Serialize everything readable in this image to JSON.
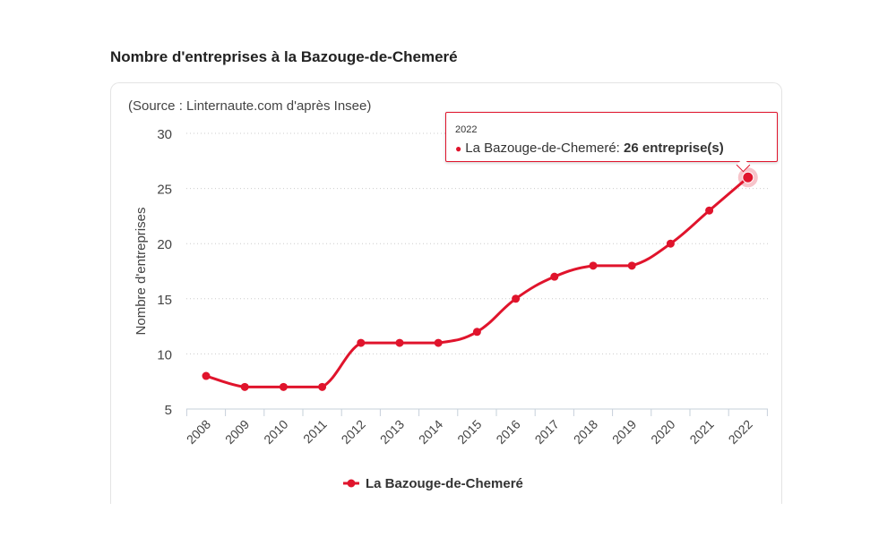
{
  "title": "Nombre d'entreprises à la Bazouge-de-Chemeré",
  "chart_data": {
    "type": "line",
    "subtitle": "(Source : Linternaute.com d'après Insee)",
    "ylabel": "Nombre d'entreprises",
    "xlabel": "",
    "ylim": [
      5,
      30
    ],
    "yticks": [
      "5",
      "10",
      "15",
      "20",
      "25",
      "30"
    ],
    "categories": [
      "2008",
      "2009",
      "2010",
      "2011",
      "2012",
      "2013",
      "2014",
      "2015",
      "2016",
      "2017",
      "2018",
      "2019",
      "2020",
      "2021",
      "2022"
    ],
    "series": [
      {
        "name": "La Bazouge-de-Chemeré",
        "values": [
          8,
          7,
          7,
          7,
          11,
          11,
          11,
          12,
          15,
          17,
          18,
          18,
          20,
          23,
          26
        ],
        "color": "#e0142c"
      }
    ],
    "legend": "bottom-center",
    "grid": true
  },
  "tooltip": {
    "year": "2022",
    "series": "La Bazouge-de-Chemeré:",
    "value": "26 entreprise(s)"
  }
}
